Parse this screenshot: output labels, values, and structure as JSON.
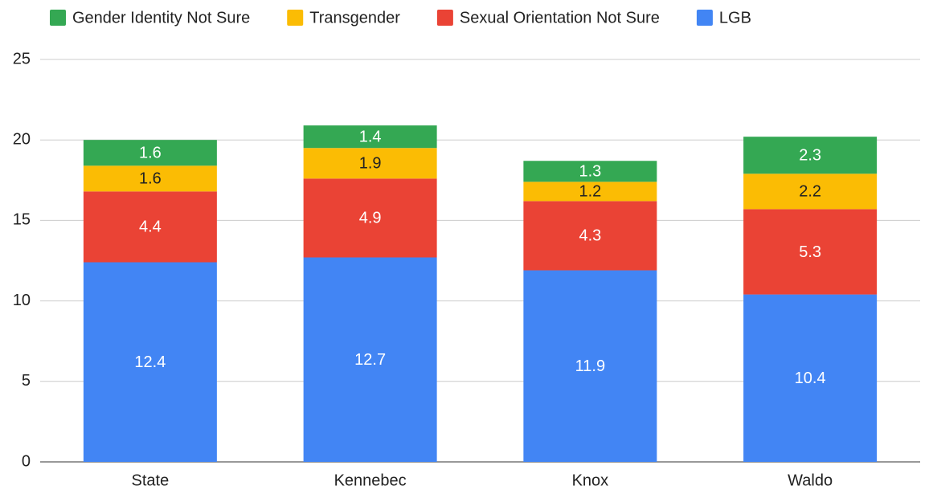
{
  "chart_data": {
    "type": "stacked_bar",
    "categories": [
      "State",
      "Kennebec",
      "Knox",
      "Waldo"
    ],
    "series": [
      {
        "name": "Gender Identity Not Sure",
        "color": "#34a853",
        "values": [
          1.6,
          1.4,
          1.3,
          2.3
        ]
      },
      {
        "name": "Transgender",
        "color": "#fbbc04",
        "values": [
          1.6,
          1.9,
          1.2,
          2.2
        ]
      },
      {
        "name": "Sexual Orientation Not Sure",
        "color": "#ea4335",
        "values": [
          4.4,
          4.9,
          4.3,
          5.3
        ]
      },
      {
        "name": "LGB",
        "color": "#4285f4",
        "values": [
          12.4,
          12.7,
          11.9,
          10.4
        ]
      }
    ],
    "ylim": [
      0,
      25
    ],
    "yticks": [
      0,
      5,
      10,
      15,
      20,
      25
    ],
    "grid": true,
    "legend": "top"
  }
}
